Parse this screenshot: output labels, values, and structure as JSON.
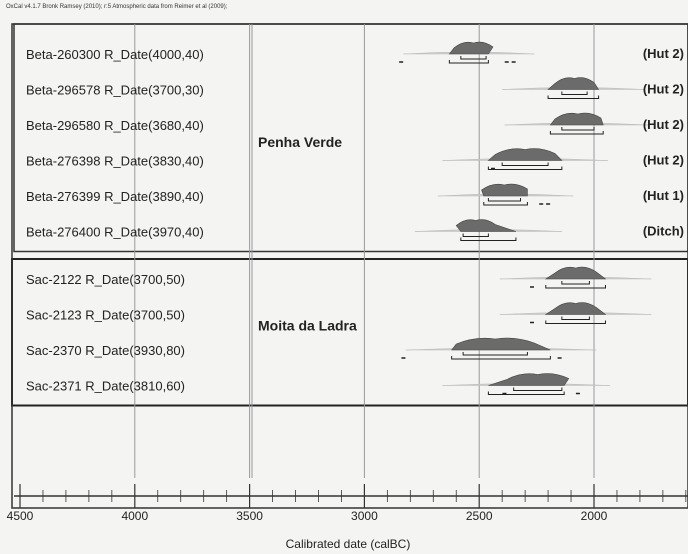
{
  "header": {
    "credit": "OxCal v4.1.7 Bronk Ramsey (2010); r:5 Atmospheric data from Reimer et al (2009);"
  },
  "chart_data": {
    "type": "radiocarbon-calibration-plot",
    "title": "",
    "xlabel": "Calibrated date (calBC)",
    "xlim": [
      4500,
      1600
    ],
    "x_reversed": true,
    "xticks": [
      4500,
      4000,
      3500,
      3000,
      2500,
      2000
    ],
    "xtick_labels": [
      "4500",
      "4000",
      "3500",
      "3000",
      "2500",
      "2000"
    ],
    "grid": true,
    "groups": [
      {
        "name": "Penha Verde",
        "rows": [
          0,
          5
        ]
      },
      {
        "name": "Moita da Ladra",
        "rows": [
          6,
          9
        ]
      }
    ],
    "series": [
      {
        "label": "Beta-260300 R_Date(4000,40)",
        "context": "(Hut 2)",
        "range_1sigma": [
          2580,
          2470
        ],
        "range_2sigma": [
          2630,
          2460
        ],
        "outliers": [
          2840,
          2380,
          2350
        ]
      },
      {
        "label": "Beta-296578 R_Date(3700,30)",
        "context": "(Hut 2)",
        "range_1sigma": [
          2140,
          2030
        ],
        "range_2sigma": [
          2200,
          1980
        ],
        "outliers": []
      },
      {
        "label": "Beta-296580 R_Date(3680,40)",
        "context": "(Hut 2)",
        "range_1sigma": [
          2140,
          2000
        ],
        "range_2sigma": [
          2190,
          1960
        ],
        "outliers": []
      },
      {
        "label": "Beta-276398 R_Date(3830,40)",
        "context": "(Hut 2)",
        "range_1sigma": [
          2400,
          2200
        ],
        "range_2sigma": [
          2460,
          2140
        ],
        "outliers": [
          2440
        ]
      },
      {
        "label": "Beta-276399 R_Date(3890,40)",
        "context": "(Hut 1)",
        "range_1sigma": [
          2460,
          2320
        ],
        "range_2sigma": [
          2480,
          2290
        ],
        "outliers": [
          2230,
          2200
        ]
      },
      {
        "label": "Beta-276400 R_Date(3970,40)",
        "context": "(Ditch)",
        "range_1sigma": [
          2570,
          2460
        ],
        "range_2sigma": [
          2580,
          2340
        ],
        "outliers": []
      },
      {
        "label": "Sac-2122 R_Date(3700,50)",
        "context": "",
        "range_1sigma": [
          2140,
          2020
        ],
        "range_2sigma": [
          2210,
          1950
        ],
        "outliers": [
          2270
        ]
      },
      {
        "label": "Sac-2123 R_Date(3700,50)",
        "context": "",
        "range_1sigma": [
          2140,
          2020
        ],
        "range_2sigma": [
          2210,
          1950
        ],
        "outliers": [
          2270
        ]
      },
      {
        "label": "Sac-2370 R_Date(3930,80)",
        "context": "",
        "range_1sigma": [
          2570,
          2290
        ],
        "range_2sigma": [
          2620,
          2190
        ],
        "outliers": [
          2830,
          2150
        ]
      },
      {
        "label": "Sac-2371 R_Date(3810,60)",
        "context": "",
        "range_1sigma": [
          2350,
          2140
        ],
        "range_2sigma": [
          2460,
          2130
        ],
        "outliers": [
          2390,
          2070
        ]
      }
    ]
  }
}
